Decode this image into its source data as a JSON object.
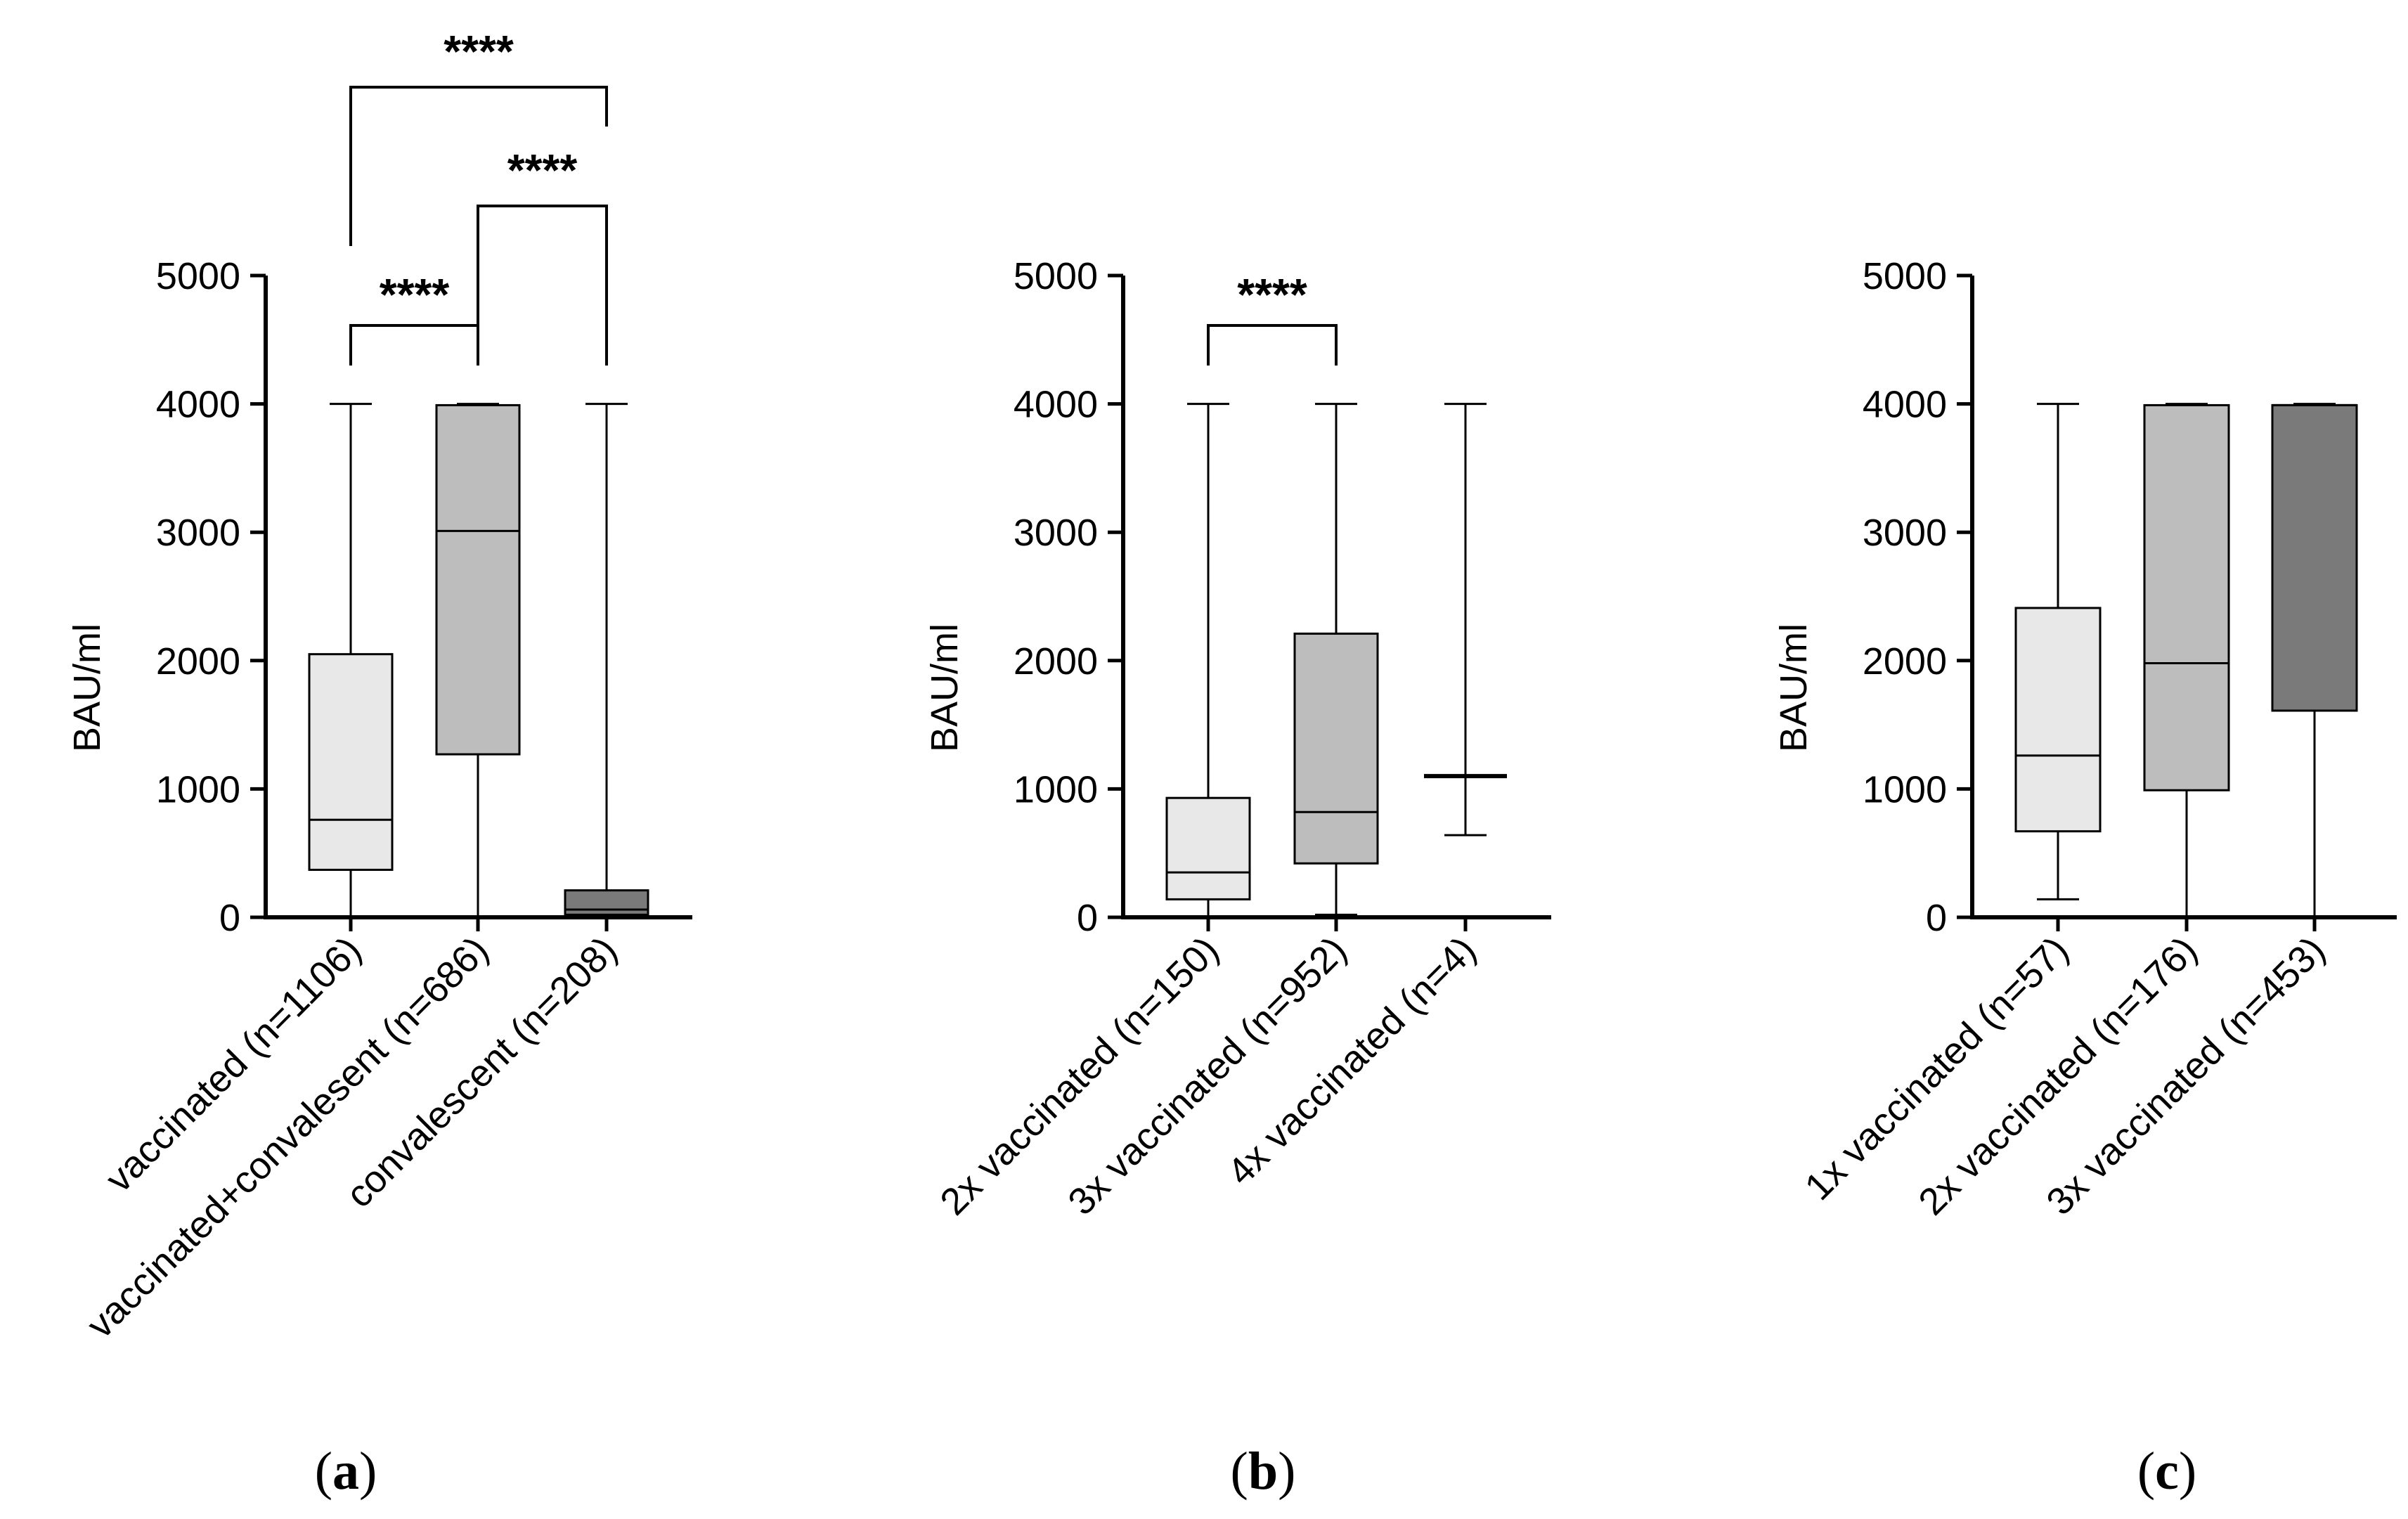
{
  "chart_data": [
    {
      "type": "box",
      "panel_label": "a",
      "ylabel": "BAU/ml",
      "ylim": [
        0,
        5000
      ],
      "yticks": [
        0,
        1000,
        2000,
        3000,
        4000,
        5000
      ],
      "tick_labels": [
        "0",
        "1000",
        "2000",
        "3000",
        "4000",
        "5000"
      ],
      "boxes": [
        {
          "label": "vaccinated (n=1106)",
          "min": 0,
          "q1": 370,
          "median": 760,
          "q3": 2050,
          "max": 4000,
          "color": "#e8e8e8"
        },
        {
          "label": "vaccinated+convalesent (n=686)",
          "min": 0,
          "q1": 1270,
          "median": 3010,
          "q3": 3990,
          "max": 4000,
          "color": "#bdbdbd"
        },
        {
          "label": "convalescent (n=208)",
          "min": 0,
          "q1": 20,
          "median": 60,
          "q3": 210,
          "max": 4000,
          "color": "#7a7a7a"
        }
      ],
      "significance": [
        {
          "from": 0,
          "to": 1,
          "label": "****"
        },
        {
          "from": 1,
          "to": 2,
          "label": "****"
        },
        {
          "from": 0,
          "to": 2,
          "label": "****"
        }
      ]
    },
    {
      "type": "box",
      "panel_label": "b",
      "ylabel": "BAU/ml",
      "ylim": [
        0,
        5000
      ],
      "yticks": [
        0,
        1000,
        2000,
        3000,
        4000,
        5000
      ],
      "tick_labels": [
        "0",
        "1000",
        "2000",
        "3000",
        "4000",
        "5000"
      ],
      "boxes": [
        {
          "label": "2x vaccinated (n=150)",
          "min": 0,
          "q1": 140,
          "median": 350,
          "q3": 930,
          "max": 4000,
          "color": "#e8e8e8"
        },
        {
          "label": "3x vaccinated (n=952)",
          "min": 20,
          "q1": 420,
          "median": 820,
          "q3": 2210,
          "max": 4000,
          "color": "#bdbdbd"
        },
        {
          "label": "4x vaccinated (n=4)",
          "min": 640,
          "q1": 1100,
          "median": 1100,
          "q3": 1100,
          "max": 4000,
          "color": "#7a7a7a"
        }
      ],
      "significance": [
        {
          "from": 0,
          "to": 1,
          "label": "****"
        }
      ]
    },
    {
      "type": "box",
      "panel_label": "c",
      "ylabel": "BAU/ml",
      "ylim": [
        0,
        5000
      ],
      "yticks": [
        0,
        1000,
        2000,
        3000,
        4000,
        5000
      ],
      "tick_labels": [
        "0",
        "1000",
        "2000",
        "3000",
        "4000",
        "5000"
      ],
      "boxes": [
        {
          "label": "1x vaccinated (n=57)",
          "min": 140,
          "q1": 670,
          "median": 1260,
          "q3": 2410,
          "max": 4000,
          "color": "#e8e8e8"
        },
        {
          "label": "2x vaccinated (n=176)",
          "min": 0,
          "q1": 990,
          "median": 1980,
          "q3": 3990,
          "max": 4000,
          "color": "#bdbdbd"
        },
        {
          "label": "3x vaccinated (n=453)",
          "min": 0,
          "q1": 1610,
          "median": 3990,
          "q3": 3990,
          "max": 4000,
          "color": "#7a7a7a"
        }
      ],
      "significance": []
    }
  ]
}
